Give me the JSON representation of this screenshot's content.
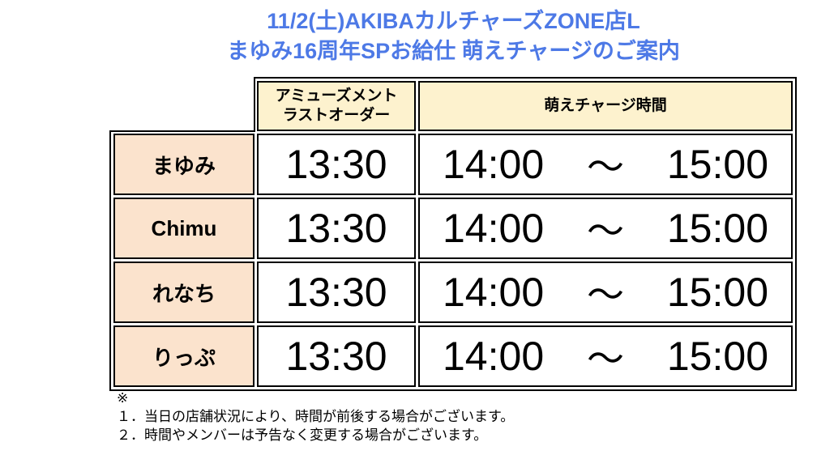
{
  "title": {
    "line1": "11/2(土)AKIBAカルチャーズZONE店L",
    "line2": "まゆみ16周年SPお給仕 萌えチャージのご案内",
    "color": "#4d79e6"
  },
  "table": {
    "header": {
      "col_last_order_line1": "アミューズメント",
      "col_last_order_line2": "ラストオーダー",
      "col_time": "萌えチャージ時間"
    },
    "rows": [
      {
        "name": "まゆみ",
        "last_order": "13:30",
        "time_start": "14:00",
        "time_separator": "～",
        "time_end": "15:00"
      },
      {
        "name": "Chimu",
        "last_order": "13:30",
        "time_start": "14:00",
        "time_separator": "～",
        "time_end": "15:00"
      },
      {
        "name": "れなち",
        "last_order": "13:30",
        "time_start": "14:00",
        "time_separator": "～",
        "time_end": "15:00"
      },
      {
        "name": "りっぷ",
        "last_order": "13:30",
        "time_start": "14:00",
        "time_separator": "～",
        "time_end": "15:00"
      }
    ],
    "colors": {
      "header_bg": "#fdf2ce",
      "name_bg": "#fbe3cd",
      "border": "#000000"
    }
  },
  "notes": {
    "mark": "※",
    "items": [
      "１．当日の店舗状況により、時間が前後する場合がございます。",
      "２．時間やメンバーは予告なく変更する場合がございます。"
    ]
  }
}
